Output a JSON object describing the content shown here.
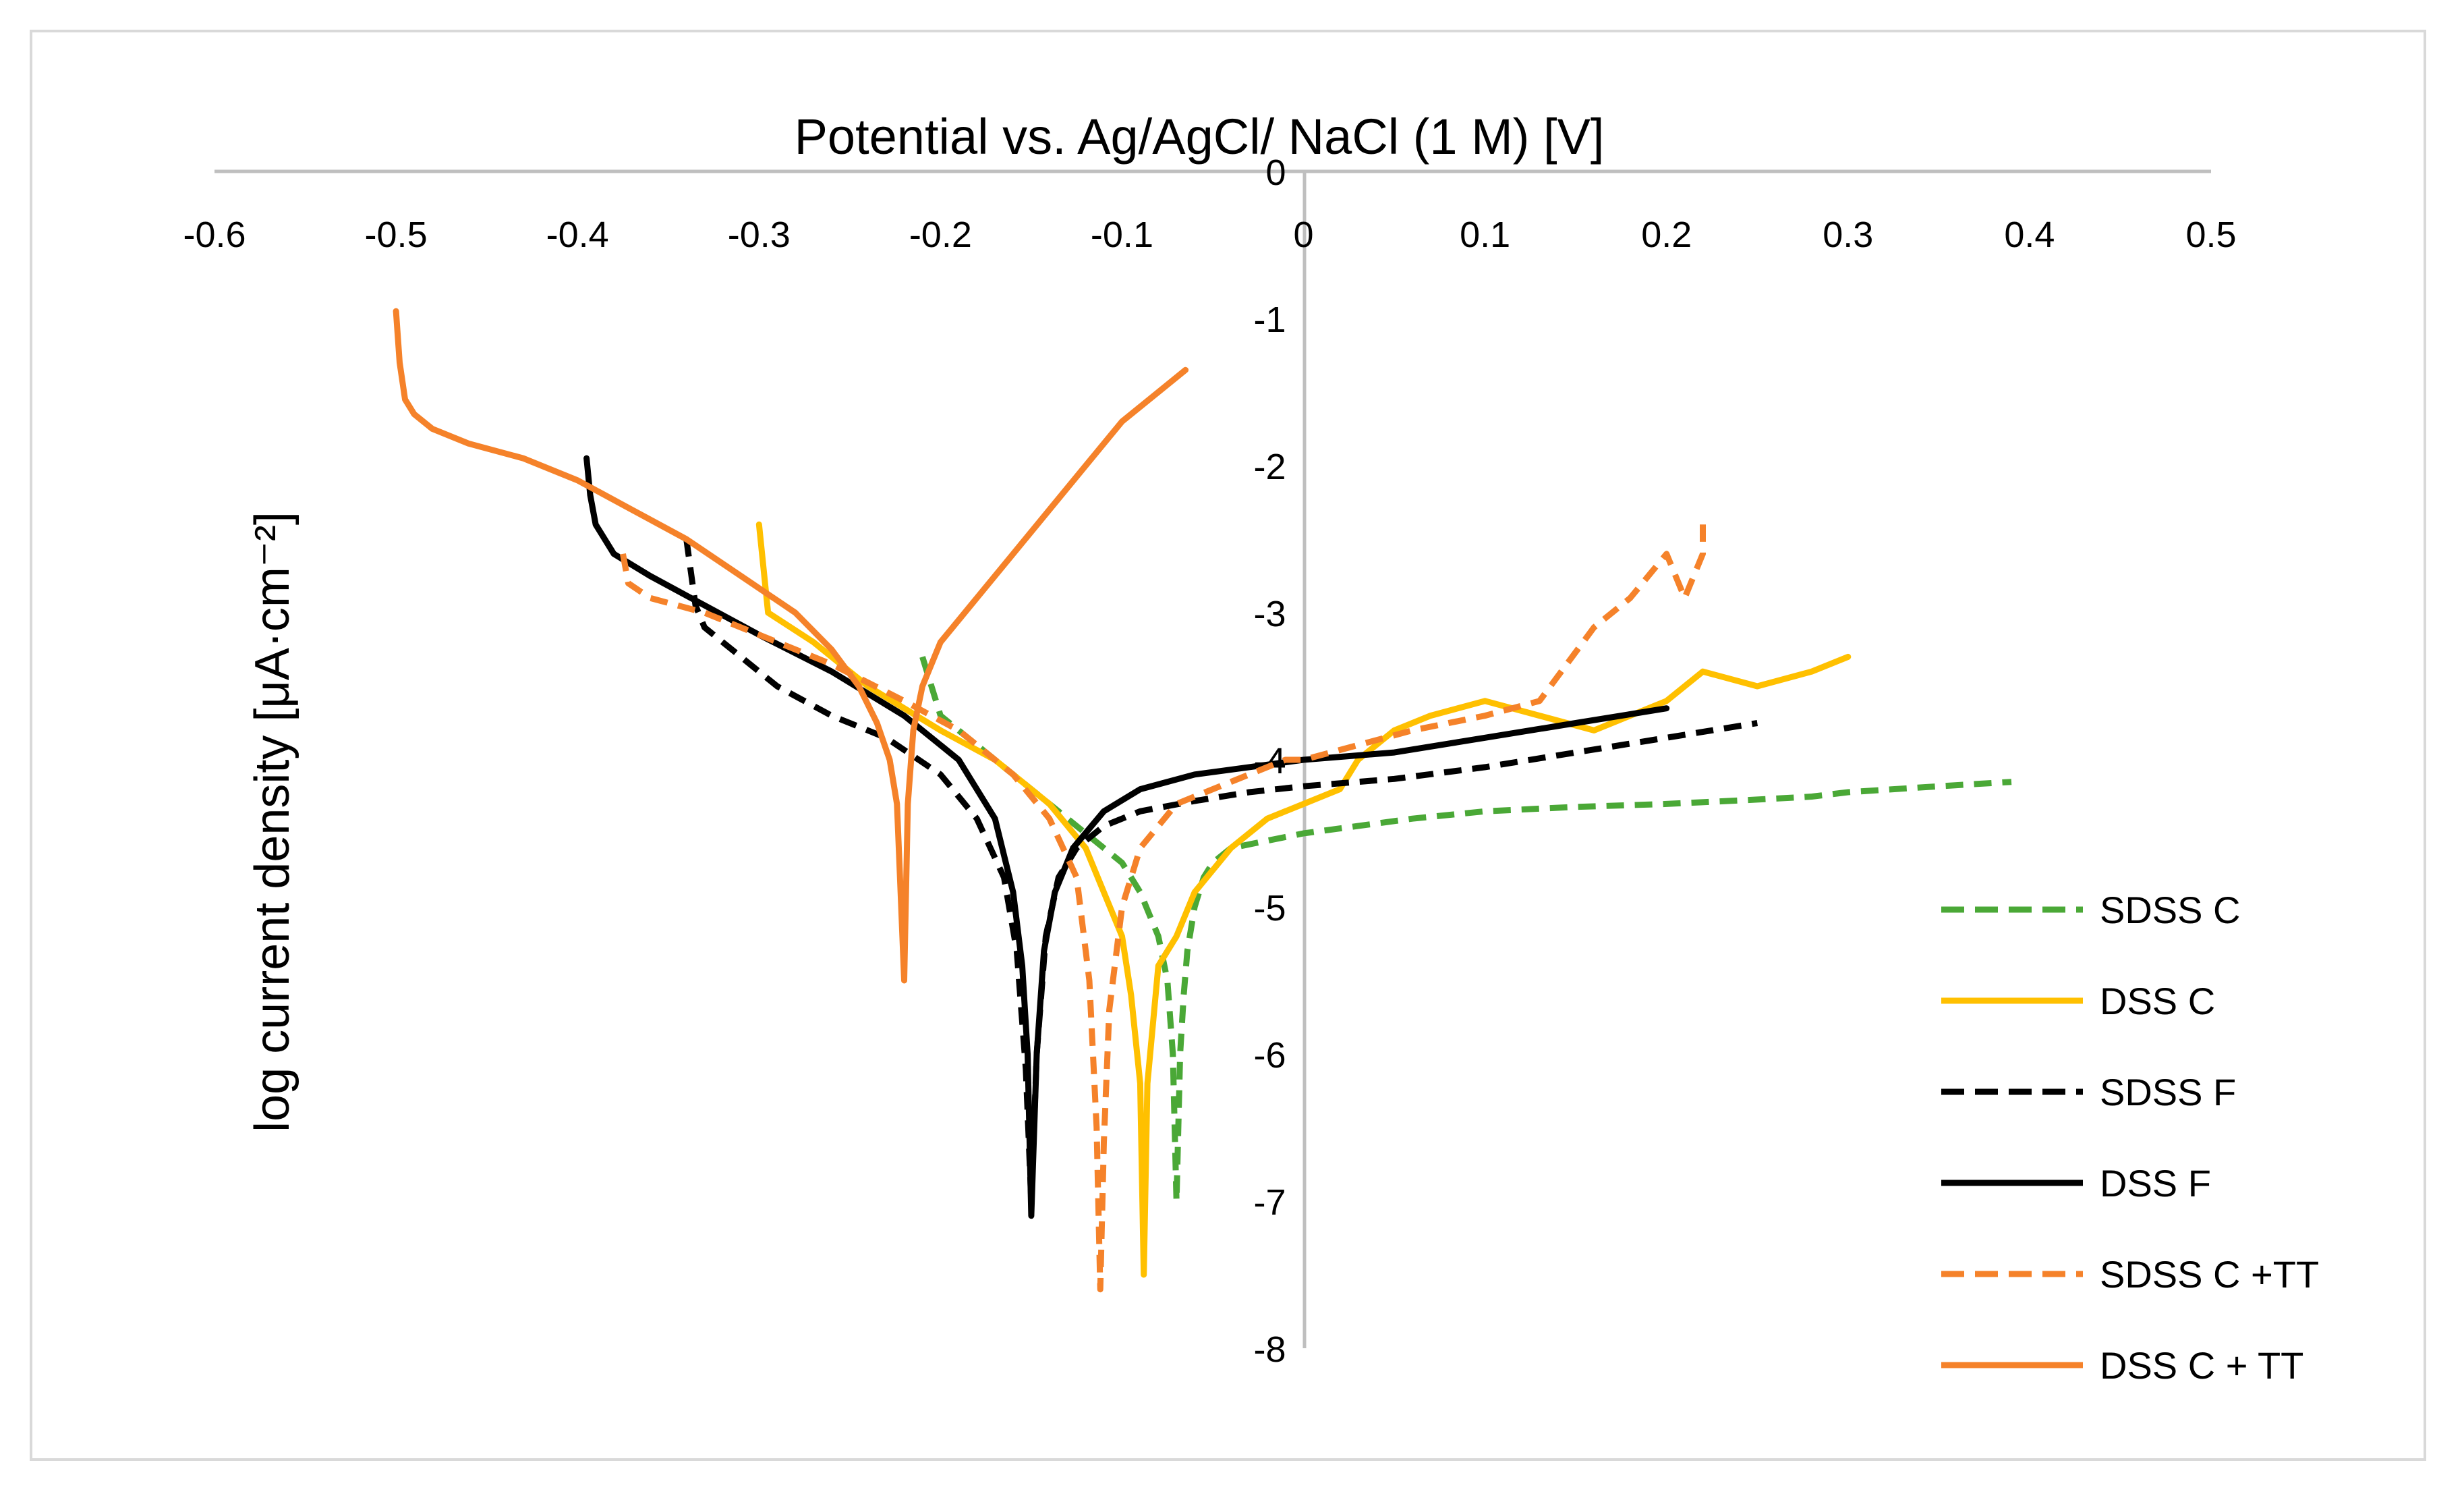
{
  "chart_data": {
    "type": "line",
    "title": "Potential vs. Ag/AgCl/ NaCl (1 M) [V]",
    "xlabel": "Potential vs. Ag/AgCl/ NaCl (1 M) [V]",
    "ylabel": "log current density [μA·cm⁻²]",
    "xlim": [
      -0.6,
      0.5
    ],
    "ylim": [
      -8,
      0
    ],
    "x_ticks": [
      -0.6,
      -0.5,
      -0.4,
      -0.3,
      -0.2,
      -0.1,
      0,
      0.1,
      0.2,
      0.3,
      0.4,
      0.5
    ],
    "x_tick_labels": [
      "-0.6",
      "-0.5",
      "-0.4",
      "-0.3",
      "-0.2",
      "-0.1",
      "0",
      "0.1",
      "0.2",
      "0.3",
      "0.4",
      "0.5"
    ],
    "y_ticks": [
      0,
      -1,
      -2,
      -3,
      -4,
      -5,
      -6,
      -7,
      -8
    ],
    "y_tick_labels": [
      "0",
      "-1",
      "-2",
      "-3",
      "-4",
      "-5",
      "-6",
      "-7",
      "-8"
    ],
    "x_axis_position": "top",
    "y_axis_crosses_at": 0,
    "legend_position": "right",
    "series": [
      {
        "name": "SDSS C",
        "color": "#4aa836",
        "dash": "dashed",
        "x": [
          -0.21,
          -0.2,
          -0.18,
          -0.16,
          -0.14,
          -0.12,
          -0.1,
          -0.09,
          -0.08,
          -0.075,
          -0.072,
          -0.07,
          -0.068,
          -0.066,
          -0.064,
          -0.06,
          -0.055,
          -0.05,
          -0.04,
          -0.02,
          0.0,
          0.03,
          0.06,
          0.1,
          0.15,
          0.2,
          0.25,
          0.28,
          0.3,
          0.35,
          0.39
        ],
        "y": [
          -3.3,
          -3.7,
          -3.9,
          -4.1,
          -4.3,
          -4.5,
          -4.7,
          -4.9,
          -5.2,
          -5.5,
          -6.0,
          -7.0,
          -6.0,
          -5.6,
          -5.3,
          -5.0,
          -4.8,
          -4.7,
          -4.6,
          -4.55,
          -4.5,
          -4.45,
          -4.4,
          -4.35,
          -4.32,
          -4.3,
          -4.27,
          -4.25,
          -4.22,
          -4.18,
          -4.15
        ]
      },
      {
        "name": "DSS C",
        "color": "#ffc000",
        "dash": "solid",
        "x": [
          -0.3,
          -0.295,
          -0.27,
          -0.24,
          -0.2,
          -0.17,
          -0.14,
          -0.12,
          -0.11,
          -0.1,
          -0.095,
          -0.09,
          -0.088,
          -0.086,
          -0.08,
          -0.07,
          -0.06,
          -0.04,
          -0.02,
          0.0,
          0.02,
          0.03,
          0.05,
          0.07,
          0.1,
          0.13,
          0.16,
          0.2,
          0.22,
          0.25,
          0.28,
          0.3
        ],
        "y": [
          -2.4,
          -3.0,
          -3.2,
          -3.5,
          -3.8,
          -4.0,
          -4.3,
          -4.6,
          -4.9,
          -5.2,
          -5.6,
          -6.2,
          -7.5,
          -6.2,
          -5.4,
          -5.2,
          -4.9,
          -4.6,
          -4.4,
          -4.3,
          -4.2,
          -4.0,
          -3.8,
          -3.7,
          -3.6,
          -3.7,
          -3.8,
          -3.6,
          -3.4,
          -3.5,
          -3.4,
          -3.3
        ]
      },
      {
        "name": "SDSS F",
        "color": "#000000",
        "dash": "dashed",
        "x": [
          -0.34,
          -0.335,
          -0.33,
          -0.31,
          -0.29,
          -0.26,
          -0.23,
          -0.2,
          -0.18,
          -0.165,
          -0.158,
          -0.153,
          -0.15,
          -0.147,
          -0.142,
          -0.135,
          -0.125,
          -0.11,
          -0.09,
          -0.06,
          -0.03,
          0.0,
          0.05,
          0.1,
          0.15,
          0.2,
          0.25
        ],
        "y": [
          -2.5,
          -2.95,
          -3.1,
          -3.3,
          -3.5,
          -3.7,
          -3.85,
          -4.1,
          -4.4,
          -4.8,
          -5.3,
          -6.1,
          -7.0,
          -6.0,
          -5.2,
          -4.8,
          -4.6,
          -4.45,
          -4.35,
          -4.28,
          -4.22,
          -4.18,
          -4.13,
          -4.05,
          -3.95,
          -3.85,
          -3.75
        ]
      },
      {
        "name": "DSS F",
        "color": "#000000",
        "dash": "solid",
        "x": [
          -0.395,
          -0.393,
          -0.39,
          -0.38,
          -0.36,
          -0.33,
          -0.3,
          -0.26,
          -0.22,
          -0.19,
          -0.17,
          -0.16,
          -0.155,
          -0.152,
          -0.15,
          -0.147,
          -0.143,
          -0.137,
          -0.127,
          -0.11,
          -0.09,
          -0.06,
          -0.03,
          0.0,
          0.05,
          0.1,
          0.15,
          0.2
        ],
        "y": [
          -1.95,
          -2.2,
          -2.4,
          -2.6,
          -2.75,
          -2.95,
          -3.15,
          -3.4,
          -3.7,
          -4.0,
          -4.4,
          -4.9,
          -5.4,
          -6.0,
          -7.1,
          -6.0,
          -5.3,
          -4.9,
          -4.6,
          -4.35,
          -4.2,
          -4.1,
          -4.05,
          -4.0,
          -3.95,
          -3.85,
          -3.75,
          -3.65
        ]
      },
      {
        "name": "SDSS C +TT",
        "color": "#f5822a",
        "dash": "dashed",
        "x": [
          -0.375,
          -0.372,
          -0.36,
          -0.33,
          -0.3,
          -0.26,
          -0.22,
          -0.19,
          -0.16,
          -0.14,
          -0.125,
          -0.118,
          -0.114,
          -0.112,
          -0.11,
          -0.107,
          -0.1,
          -0.09,
          -0.07,
          -0.05,
          -0.03,
          -0.01,
          0.0,
          0.03,
          0.06,
          0.1,
          0.13,
          0.16,
          0.18,
          0.2,
          0.21,
          0.22,
          0.22
        ],
        "y": [
          -2.6,
          -2.8,
          -2.9,
          -3.0,
          -3.15,
          -3.35,
          -3.6,
          -3.8,
          -4.1,
          -4.4,
          -4.8,
          -5.5,
          -6.5,
          -7.6,
          -6.6,
          -5.7,
          -5.0,
          -4.6,
          -4.3,
          -4.2,
          -4.1,
          -4.0,
          -4.0,
          -3.9,
          -3.8,
          -3.7,
          -3.6,
          -3.1,
          -2.9,
          -2.6,
          -2.9,
          -2.6,
          -2.4
        ]
      },
      {
        "name": "DSS C + TT",
        "color": "#f5822a",
        "dash": "solid",
        "x": [
          -0.5,
          -0.498,
          -0.495,
          -0.49,
          -0.48,
          -0.46,
          -0.43,
          -0.4,
          -0.37,
          -0.34,
          -0.31,
          -0.28,
          -0.26,
          -0.245,
          -0.235,
          -0.228,
          -0.224,
          -0.222,
          -0.22,
          -0.218,
          -0.215,
          -0.21,
          -0.2,
          -0.18,
          -0.16,
          -0.14,
          -0.12,
          -0.1,
          -0.08,
          -0.065
        ],
        "y": [
          -0.95,
          -1.3,
          -1.55,
          -1.65,
          -1.75,
          -1.85,
          -1.95,
          -2.1,
          -2.3,
          -2.5,
          -2.75,
          -3.0,
          -3.25,
          -3.5,
          -3.75,
          -4.0,
          -4.3,
          -4.9,
          -5.5,
          -4.3,
          -3.8,
          -3.5,
          -3.2,
          -2.9,
          -2.6,
          -2.3,
          -2.0,
          -1.7,
          -1.5,
          -1.35
        ]
      }
    ]
  }
}
